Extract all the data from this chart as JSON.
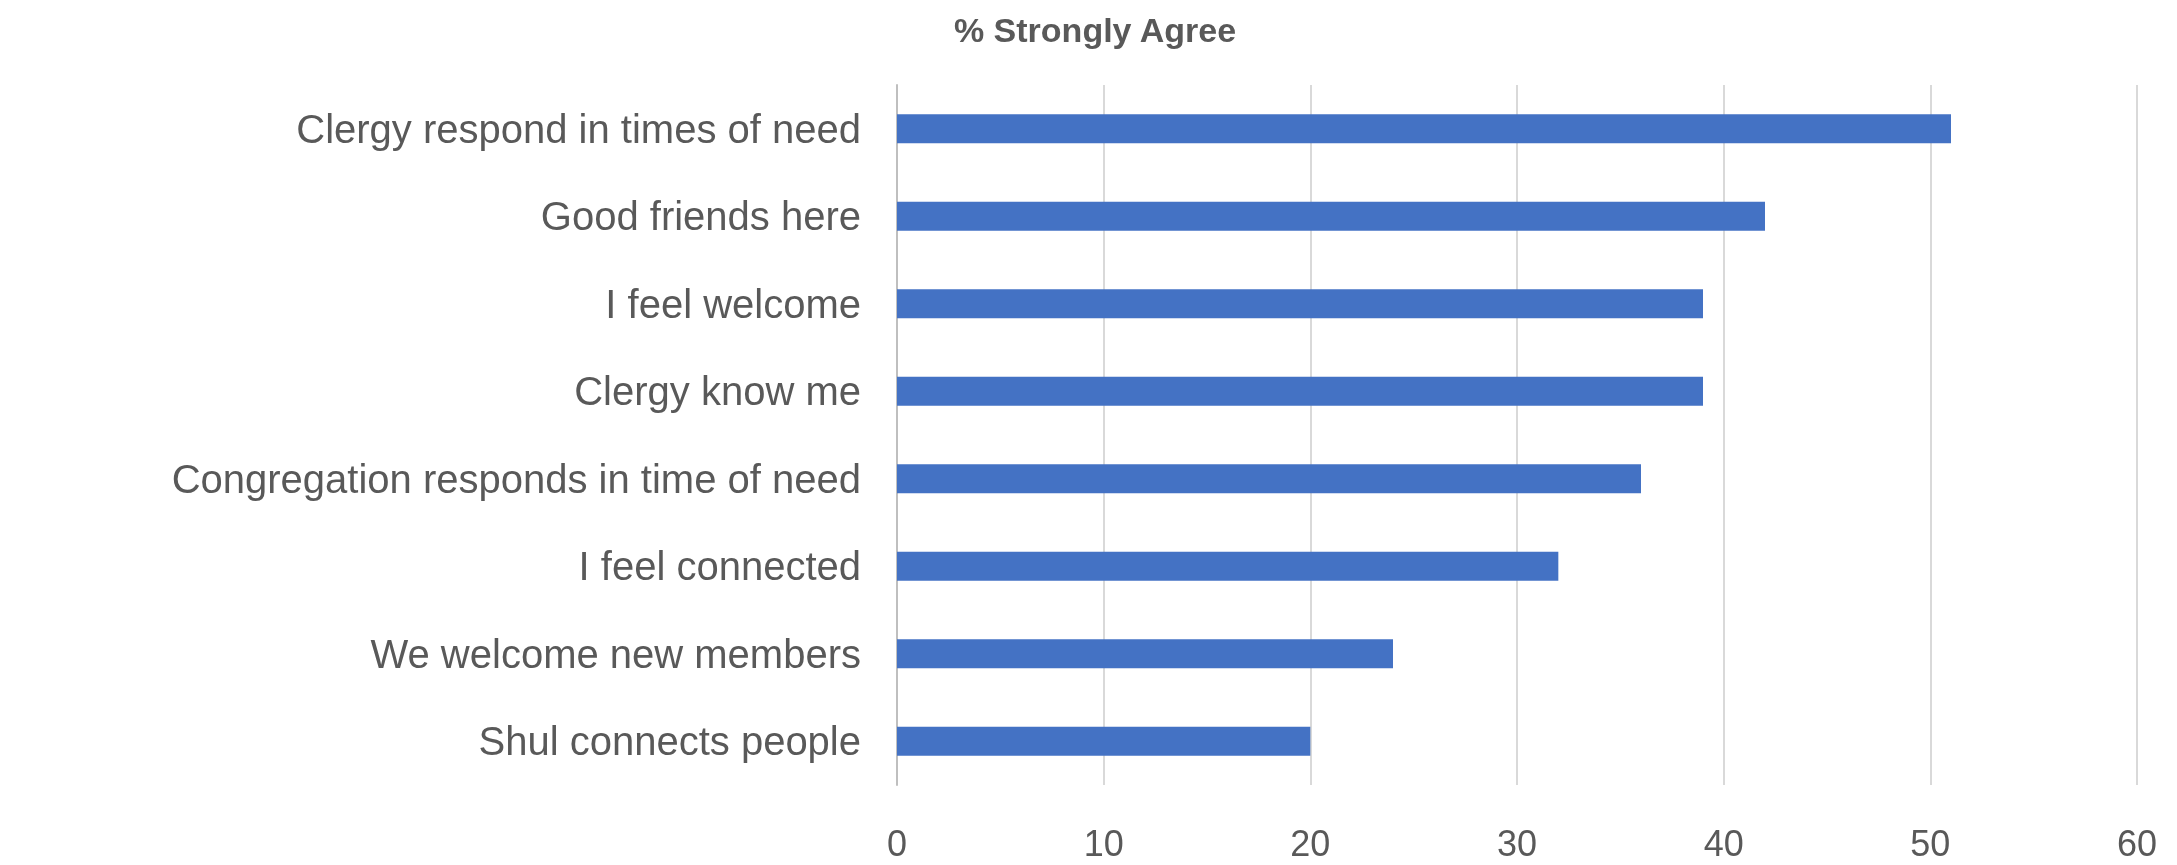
{
  "chart_data": {
    "type": "bar",
    "orientation": "horizontal",
    "title": "% Strongly Agree",
    "categories": [
      "Clergy respond in times of need",
      "Good friends here",
      "I feel welcome",
      "Clergy know me",
      "Congregation responds in time of need",
      "I feel connected",
      "We welcome new members",
      "Shul connects people"
    ],
    "values": [
      51,
      42,
      39,
      39,
      36,
      32,
      24,
      20
    ],
    "color": "#4472c4",
    "xlim": [
      0,
      60
    ],
    "xticks": [
      0,
      10,
      20,
      30,
      40,
      50,
      60
    ],
    "grid": "x"
  }
}
